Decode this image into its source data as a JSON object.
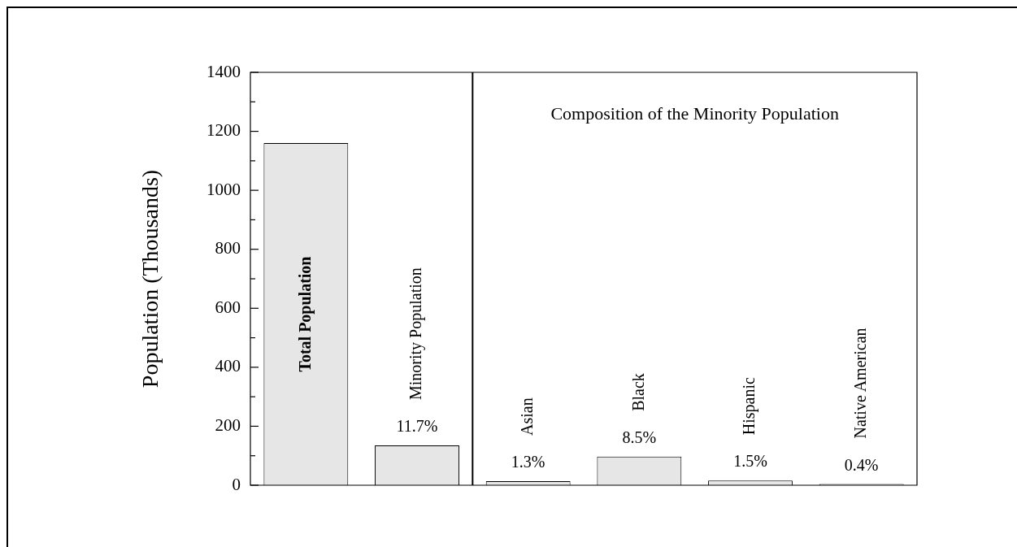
{
  "chart_data": {
    "type": "bar",
    "ylabel": "Population (Thousands)",
    "categories": [
      "Total Population",
      "Minority Population",
      "Asian",
      "Black",
      "Hispanic",
      "Native American"
    ],
    "values": [
      1160,
      135,
      14,
      97,
      16,
      4
    ],
    "color": "#e6e6e6",
    "ylim": [
      0,
      1400
    ],
    "yticks": [
      0,
      {
        "value": 100,
        "label": null
      },
      200,
      {
        "value": 300,
        "label": null
      },
      400,
      {
        "value": 500,
        "label": null
      },
      600,
      {
        "value": 700,
        "label": null
      },
      800,
      {
        "value": 900,
        "label": null
      },
      1000,
      {
        "value": 1100,
        "label": null
      },
      1200,
      {
        "value": 1300,
        "label": null
      },
      1400
    ],
    "annotations": [
      "Composition of the Minority Population",
      {
        "text": "11.7%",
        "x": "Minority Population",
        "y": 135
      },
      {
        "text": "1.3%",
        "x": "Asian",
        "y": 14
      },
      {
        "text": "8.5%",
        "x": "Black",
        "y": 97
      },
      {
        "text": "1.5%",
        "x": "Hispanic",
        "y": 16
      },
      {
        "text": "0.4%",
        "x": "Native American",
        "y": 4
      }
    ],
    "grid": false,
    "legend": false
  }
}
